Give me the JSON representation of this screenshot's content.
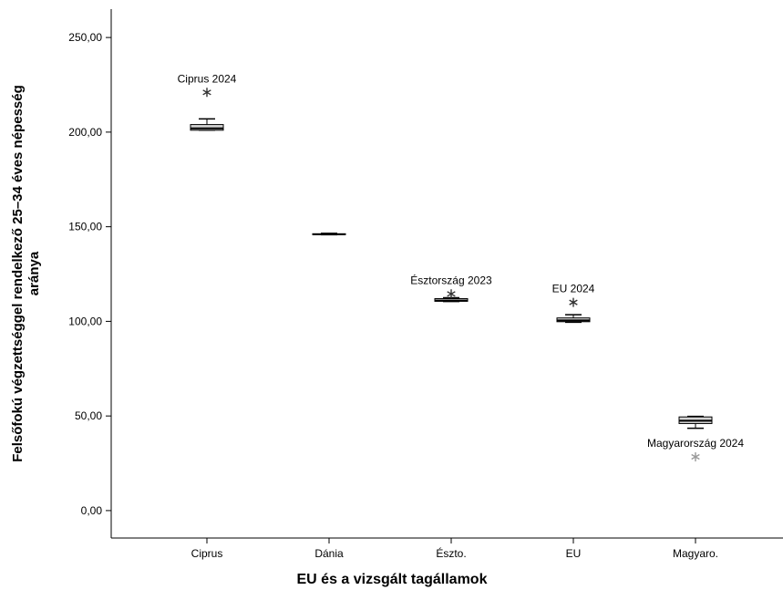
{
  "chart_data": {
    "type": "box",
    "ylabel": [
      "Felsőfokú végzettséggel rendelkező 25–34 éves népesség",
      "aránya"
    ],
    "xlabel": "EU és a vizsgált tagállamok",
    "categories": [
      "Ciprus",
      "Dánia",
      "Észto.",
      "EU",
      "Magyaro."
    ],
    "box_color": "#d4d4d4",
    "boxes": [
      {
        "min": 201,
        "q1": 201,
        "median": 202,
        "q3": 204,
        "max": 207,
        "outliers": [
          {
            "value": 221,
            "label": "Ciprus 2024",
            "color": "#333333"
          }
        ]
      },
      {
        "min": 145.8,
        "q1": 146,
        "median": 146,
        "q3": 146.3,
        "max": 146.5,
        "outliers": []
      },
      {
        "min": 110.5,
        "q1": 110.6,
        "median": 111,
        "q3": 112,
        "max": 112.5,
        "outliers": [
          {
            "value": 114.5,
            "label": "Észtország 2023",
            "color": "#333333"
          }
        ]
      },
      {
        "min": 99.5,
        "q1": 99.8,
        "median": 100.5,
        "q3": 101.8,
        "max": 103.5,
        "outliers": [
          {
            "value": 110,
            "label": "EU 2024",
            "color": "#333333"
          }
        ]
      },
      {
        "min": 43.5,
        "q1": 46,
        "median": 47.5,
        "q3": 49.5,
        "max": 49.8,
        "outliers": [
          {
            "value": 28.4,
            "label": "Magyarország 2024",
            "color": "#999999"
          }
        ]
      }
    ],
    "ylim": [
      -14.5,
      265
    ],
    "yticks": [
      {
        "value": 0,
        "label": "0,00"
      },
      {
        "value": 50,
        "label": "50,00"
      },
      {
        "value": 100,
        "label": "100,00"
      },
      {
        "value": 150,
        "label": "150,00"
      },
      {
        "value": 200,
        "label": "200,00"
      },
      {
        "value": 250,
        "label": "250,00"
      }
    ]
  }
}
